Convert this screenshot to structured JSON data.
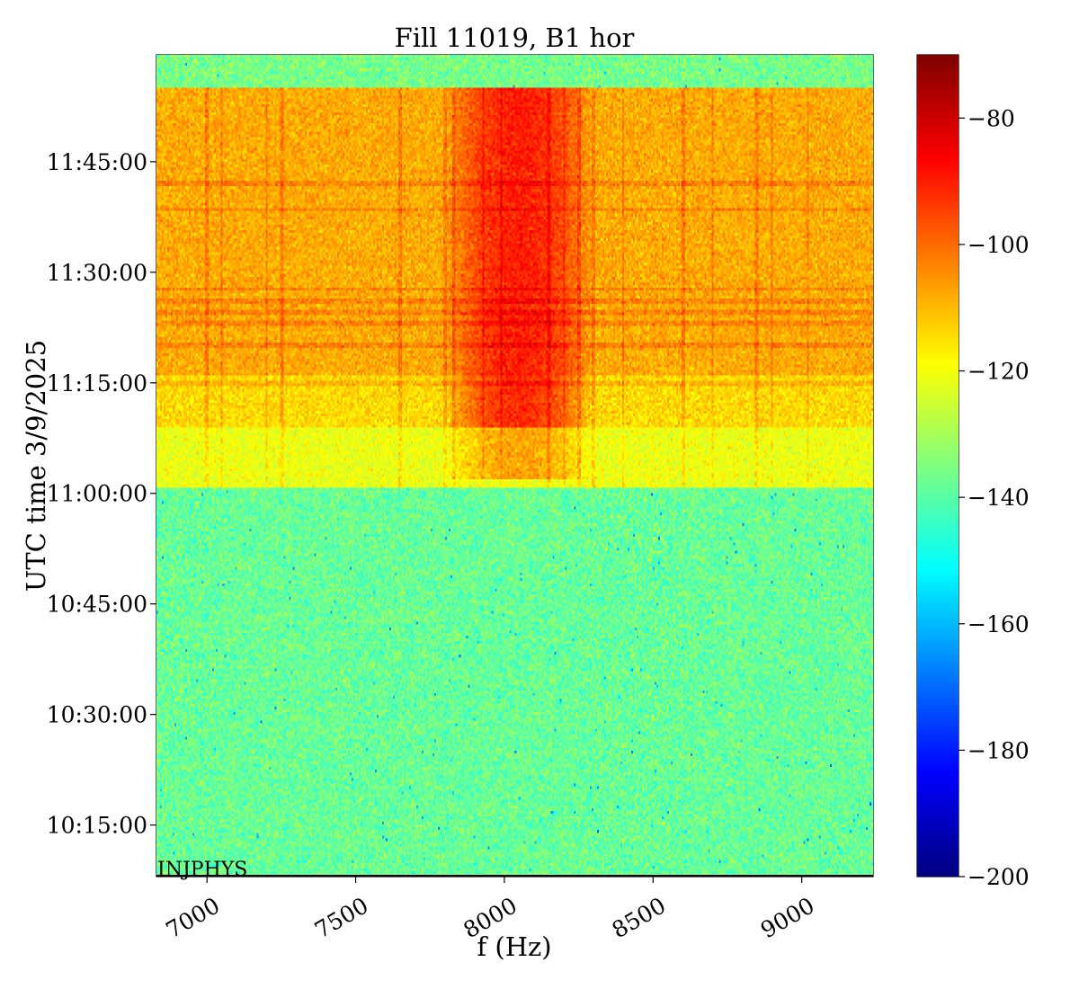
{
  "chart_data": {
    "type": "heatmap",
    "title": "Fill 11019, B1 hor",
    "xlabel": "f (Hz)",
    "ylabel": "UTC time 3/9/2025",
    "annotation": "INJPHYS",
    "xlim": [
      6830,
      9240
    ],
    "x_ticks": [
      7000,
      7500,
      8000,
      8500,
      9000
    ],
    "x_tick_labels": [
      "7000",
      "7500",
      "8000",
      "8500",
      "9000"
    ],
    "ylim": [
      "10:08:00",
      "11:59:30"
    ],
    "y_ticks": [
      "10:15:00",
      "10:30:00",
      "10:45:00",
      "11:00:00",
      "11:15:00",
      "11:30:00",
      "11:45:00"
    ],
    "y_tick_labels": [
      "10:15:00",
      "10:30:00",
      "10:45:00",
      "11:00:00",
      "11:15:00",
      "11:30:00",
      "11:45:00"
    ],
    "colorbar": {
      "colormap": "jet",
      "range": [
        -200,
        -70
      ],
      "ticks": [
        -80,
        -100,
        -120,
        -140,
        -160,
        -180,
        -200
      ],
      "tick_labels": [
        "−80",
        "−100",
        "−120",
        "−140",
        "−160",
        "−180",
        "−200"
      ]
    },
    "regions": [
      {
        "t_start": "10:08:00",
        "t_end": "11:00:45",
        "f_start": 6830,
        "f_end": 9240,
        "level_db": -138
      },
      {
        "t_start": "11:00:45",
        "t_end": "11:09:00",
        "f_start": 6830,
        "f_end": 9240,
        "level_db": -121
      },
      {
        "t_start": "11:09:00",
        "t_end": "11:16:00",
        "f_start": 6830,
        "f_end": 9240,
        "level_db": -114
      },
      {
        "t_start": "11:16:00",
        "t_end": "11:55:00",
        "f_start": 6830,
        "f_end": 9240,
        "level_db": -108
      },
      {
        "t_start": "11:55:00",
        "t_end": "11:59:30",
        "f_start": 6830,
        "f_end": 9240,
        "level_db": -136
      }
    ],
    "hot_band": {
      "f_start": 7800,
      "f_end": 8300,
      "t_start": "11:09:00",
      "t_end": "11:55:00",
      "peak_db": -84
    },
    "lines_hz": [
      7000,
      7050,
      7200,
      7250,
      7650,
      7800,
      7830,
      7930,
      7990,
      8150,
      8200,
      8250,
      8300,
      8400,
      8600,
      8700,
      8850,
      8900,
      9020
    ],
    "bands_utc": [
      "11:42:00",
      "11:38:30",
      "11:27:40",
      "11:26:00",
      "11:24:30",
      "11:23:00",
      "11:20:00",
      "11:15:00"
    ]
  }
}
